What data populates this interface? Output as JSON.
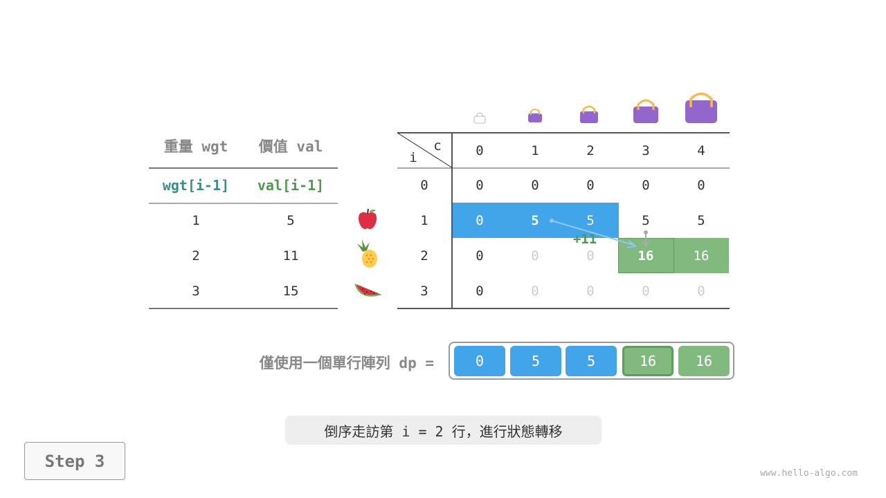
{
  "left_table": {
    "headers": [
      "重量 wgt",
      "價值 val"
    ],
    "subheaders": [
      "wgt[i-1]",
      "val[i-1]"
    ],
    "rows": [
      [
        "1",
        "5"
      ],
      [
        "2",
        "11"
      ],
      [
        "3",
        "15"
      ]
    ],
    "fruit_icons": [
      "apple-icon",
      "pineapple-icon",
      "watermelon-icon"
    ]
  },
  "dp_table": {
    "corner_i": "i",
    "corner_c": "c",
    "col_headers": [
      "0",
      "1",
      "2",
      "3",
      "4"
    ],
    "row_headers": [
      "0",
      "1",
      "2",
      "3"
    ],
    "rows": [
      [
        "0",
        "0",
        "0",
        "0",
        "0"
      ],
      [
        "0",
        "5",
        "5",
        "5",
        "5"
      ],
      [
        "0",
        "0",
        "0",
        "16",
        "16"
      ],
      [
        "0",
        "0",
        "0",
        "0",
        "0"
      ]
    ],
    "annotation": "+11",
    "bag_icons": [
      "bag-capacity-0-icon",
      "bag-capacity-1-icon",
      "bag-capacity-2-icon",
      "bag-capacity-3-icon",
      "bag-capacity-4-icon"
    ]
  },
  "dp_array": {
    "label": "僅使用一個單行陣列 dp =",
    "values": [
      "0",
      "5",
      "5",
      "16",
      "16"
    ]
  },
  "caption": "倒序走訪第 i = 2 行，進行狀態轉移",
  "step_label": "Step 3",
  "watermark": "www.hello-algo.com",
  "colors": {
    "blue": "#42a5e9",
    "green": "#81b97f",
    "green_dark": "#5c9e5a",
    "teal": "#3a8f87",
    "val_green": "#4e9a4c"
  }
}
